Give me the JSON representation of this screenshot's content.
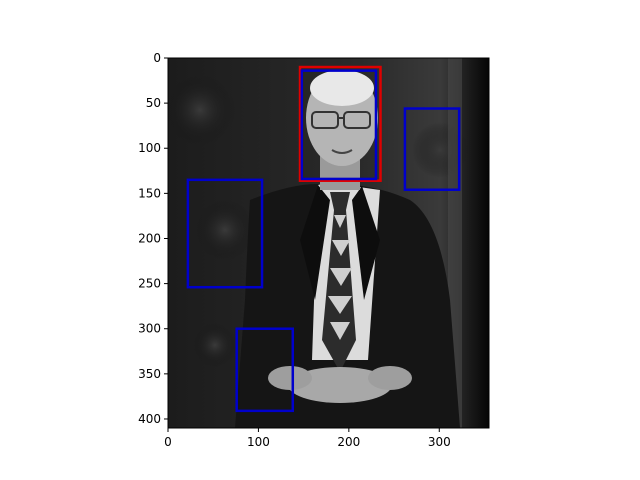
{
  "chart_data": {
    "type": "image",
    "xlim": [
      0,
      355
    ],
    "ylim": [
      410,
      0
    ],
    "x_ticks": [
      0,
      100,
      200,
      300
    ],
    "y_ticks": [
      0,
      50,
      100,
      150,
      200,
      250,
      300,
      350,
      400
    ],
    "x_tick_labels": [
      "0",
      "100",
      "200",
      "300"
    ],
    "y_tick_labels": [
      "0",
      "50",
      "100",
      "150",
      "200",
      "250",
      "300",
      "350",
      "400"
    ],
    "image_description_colors": {
      "background": "#0e0e0e",
      "suit": "#1a1a1a",
      "shirt": "#e6e6e6",
      "skin": "#b8b8b8"
    },
    "boxes": [
      {
        "name": "red-box",
        "color": "#e00000",
        "x0": 146,
        "y0": 10,
        "x1": 235,
        "y1": 136
      },
      {
        "name": "blue-box-1",
        "color": "#0000cc",
        "x0": 148,
        "y0": 14,
        "x1": 230,
        "y1": 134
      },
      {
        "name": "blue-box-2",
        "color": "#0000cc",
        "x0": 262,
        "y0": 56,
        "x1": 322,
        "y1": 146
      },
      {
        "name": "blue-box-3",
        "color": "#0000cc",
        "x0": 22,
        "y0": 135,
        "x1": 104,
        "y1": 254
      },
      {
        "name": "blue-box-4",
        "color": "#0000cc",
        "x0": 76,
        "y0": 300,
        "x1": 138,
        "y1": 391
      }
    ]
  }
}
